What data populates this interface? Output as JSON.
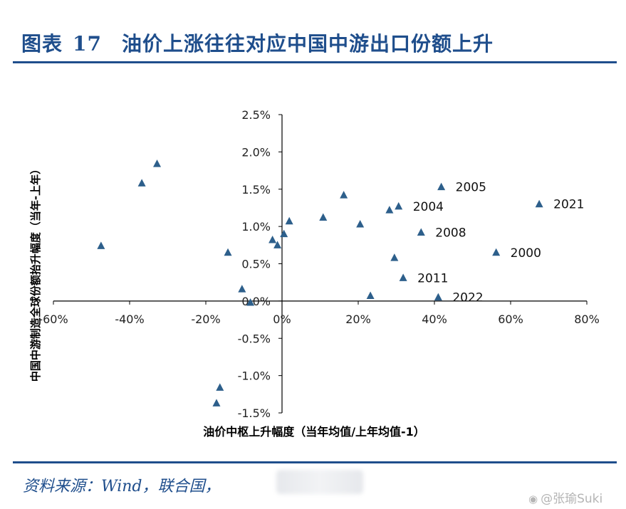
{
  "figure": {
    "label": "图表",
    "number": "17",
    "title": "油价上涨往往对应中国中游出口份额上升"
  },
  "source": "资料来源：Wind，联合国，",
  "watermark": {
    "icon": "weibo-icon",
    "text": "@张瑜Suki"
  },
  "colors": {
    "title": "#1f4e8c",
    "marker": "#2d5f8b",
    "axis": "#000000"
  },
  "chart_data": {
    "type": "scatter",
    "xlabel": "油价中枢上升幅度（当年均值/上年均值-1）",
    "ylabel": "中国中游制造全球份额抬升幅度（当年-上年）",
    "xlim": [
      -0.6,
      0.8
    ],
    "ylim": [
      -0.015,
      0.025
    ],
    "x_ticks": [
      -0.6,
      -0.4,
      -0.2,
      0,
      0.2,
      0.4,
      0.6,
      0.8
    ],
    "x_tick_labels": [
      "-60%",
      "-40%",
      "-20%",
      "0%",
      "20%",
      "40%",
      "60%",
      "80%"
    ],
    "y_ticks": [
      -0.015,
      -0.01,
      -0.005,
      0,
      0.005,
      0.01,
      0.015,
      0.02,
      0.025
    ],
    "y_tick_labels": [
      "-1.5%",
      "-1.0%",
      "-0.5%",
      "0.0%",
      "0.5%",
      "1.0%",
      "1.5%",
      "2.0%",
      "2.5%"
    ],
    "grid": false,
    "points": [
      {
        "x": -0.475,
        "y": 0.0074
      },
      {
        "x": -0.368,
        "y": 0.0158
      },
      {
        "x": -0.328,
        "y": 0.0184
      },
      {
        "x": -0.142,
        "y": 0.0065
      },
      {
        "x": -0.105,
        "y": 0.0016
      },
      {
        "x": -0.083,
        "y": -0.0002
      },
      {
        "x": -0.163,
        "y": -0.0116
      },
      {
        "x": -0.172,
        "y": -0.0137
      },
      {
        "x": -0.025,
        "y": 0.0082
      },
      {
        "x": -0.012,
        "y": 0.0075
      },
      {
        "x": 0.005,
        "y": 0.009
      },
      {
        "x": 0.019,
        "y": 0.0107
      },
      {
        "x": 0.108,
        "y": 0.0112
      },
      {
        "x": 0.162,
        "y": 0.0142
      },
      {
        "x": 0.205,
        "y": 0.0103
      },
      {
        "x": 0.232,
        "y": 0.0007
      },
      {
        "x": 0.282,
        "y": 0.0122
      },
      {
        "x": 0.306,
        "y": 0.0127,
        "label": "2004"
      },
      {
        "x": 0.418,
        "y": 0.0153,
        "label": "2005"
      },
      {
        "x": 0.365,
        "y": 0.0092,
        "label": "2008"
      },
      {
        "x": 0.295,
        "y": 0.0058
      },
      {
        "x": 0.318,
        "y": 0.0031,
        "label": "2011"
      },
      {
        "x": 0.41,
        "y": 0.0005,
        "label": "2022"
      },
      {
        "x": 0.562,
        "y": 0.0065,
        "label": "2000"
      },
      {
        "x": 0.675,
        "y": 0.013,
        "label": "2021"
      }
    ]
  }
}
